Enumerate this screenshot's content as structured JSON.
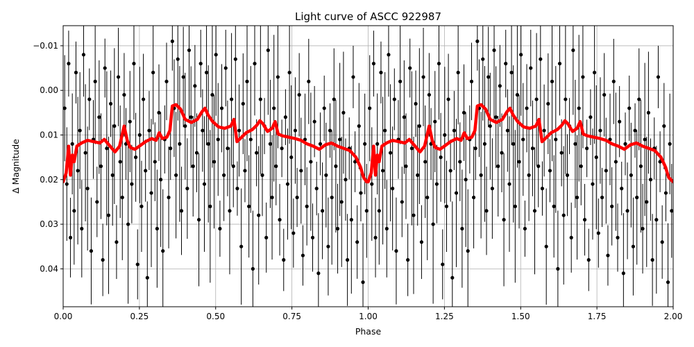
{
  "chart_data": {
    "type": "scatter",
    "title": "Light curve of ASCC 922987",
    "xlabel": "Phase",
    "ylabel": "Δ Magnitude",
    "xlim": [
      0.0,
      2.0
    ],
    "ylim": [
      0.0485,
      -0.0145
    ],
    "y_inverted": true,
    "grid": true,
    "x_ticks": [
      {
        "value": 0.0,
        "label": "0.00"
      },
      {
        "value": 0.25,
        "label": "0.25"
      },
      {
        "value": 0.5,
        "label": "0.50"
      },
      {
        "value": 0.75,
        "label": "0.75"
      },
      {
        "value": 1.0,
        "label": "1.00"
      },
      {
        "value": 1.25,
        "label": "1.25"
      },
      {
        "value": 1.5,
        "label": "1.50"
      },
      {
        "value": 1.75,
        "label": "1.75"
      },
      {
        "value": 2.0,
        "label": "2.00"
      }
    ],
    "y_ticks": [
      {
        "value": -0.01,
        "label": "−0.01"
      },
      {
        "value": 0.0,
        "label": "0.00"
      },
      {
        "value": 0.01,
        "label": "0.01"
      },
      {
        "value": 0.02,
        "label": "0.02"
      },
      {
        "value": 0.03,
        "label": "0.03"
      },
      {
        "value": 0.04,
        "label": "0.04"
      }
    ],
    "series": [
      {
        "kind": "scatter-errorbars",
        "color": "#000000",
        "points_phase_0_to_1": [
          [
            0.005,
            0.004
          ],
          [
            0.012,
            0.021
          ],
          [
            0.018,
            -0.006
          ],
          [
            0.024,
            0.033
          ],
          [
            0.03,
            0.012
          ],
          [
            0.036,
            0.027
          ],
          [
            0.042,
            -0.004
          ],
          [
            0.048,
            0.018
          ],
          [
            0.055,
            0.009
          ],
          [
            0.061,
            0.031
          ],
          [
            0.067,
            -0.008
          ],
          [
            0.073,
            0.014
          ],
          [
            0.08,
            0.022
          ],
          [
            0.086,
            0.002
          ],
          [
            0.092,
            0.036
          ],
          [
            0.099,
            0.011
          ],
          [
            0.105,
            -0.002
          ],
          [
            0.111,
            0.025
          ],
          [
            0.118,
            0.006
          ],
          [
            0.124,
            0.017
          ],
          [
            0.13,
            0.038
          ],
          [
            0.137,
            -0.005
          ],
          [
            0.143,
            0.013
          ],
          [
            0.149,
            0.028
          ],
          [
            0.156,
            0.003
          ],
          [
            0.162,
            0.019
          ],
          [
            0.168,
            0.008
          ],
          [
            0.175,
            0.034
          ],
          [
            0.181,
            -0.003
          ],
          [
            0.187,
            0.016
          ],
          [
            0.194,
            0.024
          ],
          [
            0.2,
            0.001
          ],
          [
            0.206,
            0.012
          ],
          [
            0.213,
            0.03
          ],
          [
            0.219,
            0.007
          ],
          [
            0.225,
            0.021
          ],
          [
            0.232,
            -0.006
          ],
          [
            0.238,
            0.015
          ],
          [
            0.244,
            0.039
          ],
          [
            0.251,
            0.01
          ],
          [
            0.257,
            0.026
          ],
          [
            0.263,
            0.002
          ],
          [
            0.27,
            0.018
          ],
          [
            0.276,
            0.042
          ],
          [
            0.282,
            0.009
          ],
          [
            0.289,
            0.023
          ],
          [
            0.295,
            -0.004
          ],
          [
            0.301,
            0.016
          ],
          [
            0.308,
            0.031
          ],
          [
            0.314,
            0.005
          ],
          [
            0.32,
            0.02
          ],
          [
            0.327,
            0.036
          ],
          [
            0.333,
            0.011
          ],
          [
            0.339,
            -0.002
          ],
          [
            0.346,
            0.024
          ],
          [
            0.352,
            0.013
          ],
          [
            0.358,
            -0.011
          ],
          [
            0.364,
            0.004
          ],
          [
            0.37,
            0.019
          ],
          [
            0.376,
            -0.007
          ],
          [
            0.382,
            0.012
          ],
          [
            0.388,
            0.027
          ],
          [
            0.394,
            -0.003
          ],
          [
            0.4,
            0.008
          ],
          [
            0.407,
            0.022
          ],
          [
            0.413,
            -0.009
          ],
          [
            0.419,
            0.006
          ],
          [
            0.426,
            0.017
          ],
          [
            0.432,
            -0.001
          ],
          [
            0.438,
            0.014
          ],
          [
            0.445,
            0.029
          ],
          [
            0.451,
            -0.006
          ],
          [
            0.457,
            0.009
          ],
          [
            0.463,
            0.021
          ],
          [
            0.47,
            -0.004
          ],
          [
            0.476,
            0.012
          ],
          [
            0.482,
            0.026
          ],
          [
            0.489,
            0.001
          ],
          [
            0.495,
            0.016
          ],
          [
            0.501,
            -0.008
          ],
          [
            0.508,
            0.011
          ],
          [
            0.514,
            0.031
          ],
          [
            0.52,
            0.004
          ],
          [
            0.527,
            0.019
          ],
          [
            0.533,
            -0.005
          ],
          [
            0.539,
            0.013
          ],
          [
            0.546,
            0.027
          ],
          [
            0.552,
            0.002
          ],
          [
            0.558,
            0.017
          ],
          [
            0.565,
            -0.007
          ],
          [
            0.571,
            0.022
          ],
          [
            0.577,
            0.009
          ],
          [
            0.584,
            0.035
          ],
          [
            0.59,
            0.003
          ],
          [
            0.596,
            0.018
          ],
          [
            0.603,
            -0.002
          ],
          [
            0.609,
            0.026
          ],
          [
            0.615,
            0.011
          ],
          [
            0.622,
            0.04
          ],
          [
            0.628,
            -0.006
          ],
          [
            0.634,
            0.014
          ],
          [
            0.641,
            0.028
          ],
          [
            0.647,
            0.002
          ],
          [
            0.653,
            0.019
          ],
          [
            0.66,
            0.008
          ],
          [
            0.666,
            0.033
          ],
          [
            0.672,
            -0.009
          ],
          [
            0.679,
            0.012
          ],
          [
            0.685,
            0.024
          ],
          [
            0.691,
            0.004
          ],
          [
            0.698,
            0.017
          ],
          [
            0.704,
            -0.003
          ],
          [
            0.71,
            0.029
          ],
          [
            0.717,
            0.013
          ],
          [
            0.723,
            0.038
          ],
          [
            0.729,
            0.006
          ],
          [
            0.736,
            0.021
          ],
          [
            0.742,
            -0.004
          ],
          [
            0.748,
            0.015
          ],
          [
            0.755,
            0.032
          ],
          [
            0.761,
            0.009
          ],
          [
            0.767,
            0.024
          ],
          [
            0.774,
            0.001
          ],
          [
            0.78,
            0.018
          ],
          [
            0.786,
            0.037
          ],
          [
            0.793,
            0.011
          ],
          [
            0.799,
            0.026
          ],
          [
            0.805,
            -0.002
          ],
          [
            0.812,
            0.016
          ],
          [
            0.818,
            0.033
          ],
          [
            0.824,
            0.007
          ],
          [
            0.831,
            0.022
          ],
          [
            0.837,
            0.041
          ],
          [
            0.843,
            0.012
          ],
          [
            0.85,
            0.027
          ],
          [
            0.856,
            0.004
          ],
          [
            0.862,
            0.019
          ],
          [
            0.869,
            0.035
          ],
          [
            0.875,
            0.009
          ],
          [
            0.881,
            0.024
          ],
          [
            0.888,
            0.002
          ],
          [
            0.894,
            0.017
          ],
          [
            0.9,
            0.031
          ],
          [
            0.907,
            0.011
          ],
          [
            0.913,
            0.025
          ],
          [
            0.919,
            0.005
          ],
          [
            0.926,
            0.02
          ],
          [
            0.932,
            0.038
          ],
          [
            0.938,
            0.013
          ],
          [
            0.945,
            0.029
          ],
          [
            0.951,
            -0.003
          ],
          [
            0.957,
            0.016
          ],
          [
            0.964,
            0.034
          ],
          [
            0.97,
            0.008
          ],
          [
            0.976,
            0.023
          ],
          [
            0.983,
            0.043
          ],
          [
            0.989,
            0.012
          ],
          [
            0.995,
            0.027
          ]
        ]
      },
      {
        "kind": "line",
        "color": "#ff0000",
        "name": "",
        "points": [
          [
            0.0,
            0.0205
          ],
          [
            0.01,
            0.0185
          ],
          [
            0.018,
            0.0125
          ],
          [
            0.024,
            0.019
          ],
          [
            0.03,
            0.0145
          ],
          [
            0.036,
            0.016
          ],
          [
            0.045,
            0.0125
          ],
          [
            0.06,
            0.0118
          ],
          [
            0.08,
            0.0112
          ],
          [
            0.1,
            0.0115
          ],
          [
            0.12,
            0.0118
          ],
          [
            0.135,
            0.011
          ],
          [
            0.15,
            0.0122
          ],
          [
            0.17,
            0.0138
          ],
          [
            0.185,
            0.0125
          ],
          [
            0.195,
            0.0095
          ],
          [
            0.2,
            0.008
          ],
          [
            0.21,
            0.0112
          ],
          [
            0.22,
            0.0128
          ],
          [
            0.235,
            0.0132
          ],
          [
            0.25,
            0.0125
          ],
          [
            0.27,
            0.0115
          ],
          [
            0.29,
            0.0108
          ],
          [
            0.305,
            0.0112
          ],
          [
            0.315,
            0.0095
          ],
          [
            0.325,
            0.0108
          ],
          [
            0.34,
            0.0105
          ],
          [
            0.35,
            0.009
          ],
          [
            0.358,
            0.0035
          ],
          [
            0.37,
            0.0032
          ],
          [
            0.385,
            0.0042
          ],
          [
            0.4,
            0.0065
          ],
          [
            0.42,
            0.0072
          ],
          [
            0.44,
            0.0065
          ],
          [
            0.455,
            0.0048
          ],
          [
            0.465,
            0.004
          ],
          [
            0.475,
            0.0055
          ],
          [
            0.49,
            0.007
          ],
          [
            0.51,
            0.0082
          ],
          [
            0.53,
            0.0085
          ],
          [
            0.55,
            0.008
          ],
          [
            0.56,
            0.0065
          ],
          [
            0.57,
            0.0115
          ],
          [
            0.585,
            0.0105
          ],
          [
            0.6,
            0.0095
          ],
          [
            0.62,
            0.0088
          ],
          [
            0.635,
            0.0078
          ],
          [
            0.645,
            0.0068
          ],
          [
            0.655,
            0.0075
          ],
          [
            0.67,
            0.0092
          ],
          [
            0.685,
            0.0085
          ],
          [
            0.695,
            0.007
          ],
          [
            0.705,
            0.0098
          ],
          [
            0.72,
            0.0102
          ],
          [
            0.74,
            0.0105
          ],
          [
            0.76,
            0.0108
          ],
          [
            0.78,
            0.0112
          ],
          [
            0.8,
            0.012
          ],
          [
            0.82,
            0.0125
          ],
          [
            0.84,
            0.0132
          ],
          [
            0.86,
            0.0122
          ],
          [
            0.88,
            0.0118
          ],
          [
            0.9,
            0.0125
          ],
          [
            0.92,
            0.013
          ],
          [
            0.94,
            0.0135
          ],
          [
            0.96,
            0.015
          ],
          [
            0.975,
            0.0172
          ],
          [
            0.985,
            0.0195
          ],
          [
            0.995,
            0.0205
          ],
          [
            1.0,
            0.0205
          ],
          [
            1.01,
            0.0185
          ],
          [
            1.018,
            0.0125
          ],
          [
            1.024,
            0.019
          ],
          [
            1.03,
            0.0145
          ],
          [
            1.036,
            0.016
          ],
          [
            1.045,
            0.0125
          ],
          [
            1.06,
            0.0118
          ],
          [
            1.08,
            0.0112
          ],
          [
            1.1,
            0.0115
          ],
          [
            1.12,
            0.0118
          ],
          [
            1.135,
            0.011
          ],
          [
            1.15,
            0.0122
          ],
          [
            1.17,
            0.0138
          ],
          [
            1.185,
            0.0125
          ],
          [
            1.195,
            0.0095
          ],
          [
            1.2,
            0.008
          ],
          [
            1.21,
            0.0112
          ],
          [
            1.22,
            0.0128
          ],
          [
            1.235,
            0.0132
          ],
          [
            1.25,
            0.0125
          ],
          [
            1.27,
            0.0115
          ],
          [
            1.29,
            0.0108
          ],
          [
            1.305,
            0.0112
          ],
          [
            1.315,
            0.0095
          ],
          [
            1.325,
            0.0108
          ],
          [
            1.34,
            0.0105
          ],
          [
            1.35,
            0.009
          ],
          [
            1.358,
            0.0035
          ],
          [
            1.37,
            0.0032
          ],
          [
            1.385,
            0.0042
          ],
          [
            1.4,
            0.0065
          ],
          [
            1.42,
            0.0072
          ],
          [
            1.44,
            0.0065
          ],
          [
            1.455,
            0.0048
          ],
          [
            1.465,
            0.004
          ],
          [
            1.475,
            0.0055
          ],
          [
            1.49,
            0.007
          ],
          [
            1.51,
            0.0082
          ],
          [
            1.53,
            0.0085
          ],
          [
            1.55,
            0.008
          ],
          [
            1.56,
            0.0065
          ],
          [
            1.57,
            0.0115
          ],
          [
            1.585,
            0.0105
          ],
          [
            1.6,
            0.0095
          ],
          [
            1.62,
            0.0088
          ],
          [
            1.635,
            0.0078
          ],
          [
            1.645,
            0.0068
          ],
          [
            1.655,
            0.0075
          ],
          [
            1.67,
            0.0092
          ],
          [
            1.685,
            0.0085
          ],
          [
            1.695,
            0.007
          ],
          [
            1.705,
            0.0098
          ],
          [
            1.72,
            0.0102
          ],
          [
            1.74,
            0.0105
          ],
          [
            1.76,
            0.0108
          ],
          [
            1.78,
            0.0112
          ],
          [
            1.8,
            0.012
          ],
          [
            1.82,
            0.0125
          ],
          [
            1.84,
            0.0132
          ],
          [
            1.86,
            0.0122
          ],
          [
            1.88,
            0.0118
          ],
          [
            1.9,
            0.0125
          ],
          [
            1.92,
            0.013
          ],
          [
            1.94,
            0.0135
          ],
          [
            1.96,
            0.015
          ],
          [
            1.975,
            0.0172
          ],
          [
            1.985,
            0.0195
          ],
          [
            2.0,
            0.0205
          ]
        ]
      }
    ]
  }
}
